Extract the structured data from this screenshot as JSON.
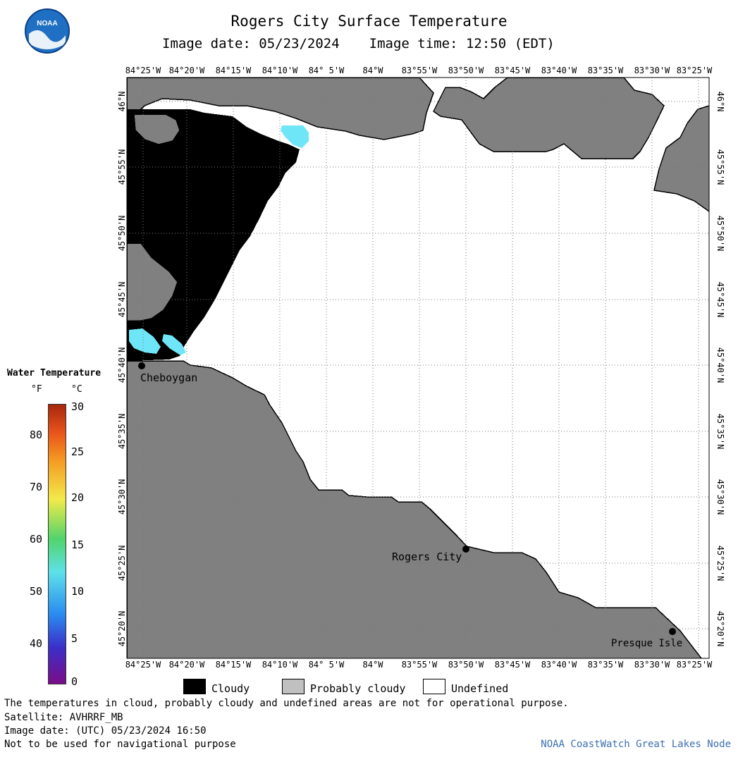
{
  "header": {
    "title": "Rogers City Surface Temperature",
    "image_date_label": "Image date: 05/23/2024",
    "image_time_label": "Image time: 12:50 (EDT)",
    "logo_text": "NOAA"
  },
  "map": {
    "lon_labels": [
      "84°25'W",
      "84°20'W",
      "84°15'W",
      "84°10'W",
      "84° 5'W",
      "84°W",
      "83°55'W",
      "83°50'W",
      "83°45'W",
      "83°40'W",
      "83°35'W",
      "83°30'W",
      "83°25'W"
    ],
    "lat_labels": [
      "46°N",
      "45°55'N",
      "45°50'N",
      "45°45'N",
      "45°40'N",
      "45°35'N",
      "45°30'N",
      "45°25'N",
      "45°20'N"
    ],
    "places": [
      "Cheboygan",
      "Rogers City",
      "Presque Isle"
    ],
    "colors": {
      "land": "#808080",
      "cloudy": "#000000",
      "probably_cloudy": "#c0c0c0",
      "undefined": "#ffffff",
      "water_cells": "#6fe6f8",
      "grid": "#777777"
    }
  },
  "color_legend": {
    "title": "Water Temperature",
    "unit_f": "°F",
    "unit_c": "°C",
    "f_ticks": [
      "80",
      "70",
      "60",
      "50",
      "40"
    ],
    "c_ticks": [
      "30",
      "25",
      "20",
      "15",
      "10",
      "5",
      "0"
    ],
    "color_stops": [
      "#7a0c88",
      "#3b2fc8",
      "#2a8cf0",
      "#5ee0ea",
      "#52d46a",
      "#f2ea4a",
      "#f59a22",
      "#e8531b",
      "#a6270c"
    ]
  },
  "key": {
    "items": [
      {
        "label": "Cloudy",
        "color": "#000000"
      },
      {
        "label": "Probably cloudy",
        "color": "#c0c0c0"
      },
      {
        "label": "Undefined",
        "color": "#ffffff"
      }
    ]
  },
  "notes": {
    "disclaimer": "The temperatures in cloud, probably cloudy and undefined areas are not for operational purpose.",
    "satellite": "Satellite: AVHRRF_MB",
    "utc_date": "Image date: (UTC) 05/23/2024  16:50",
    "navigation": "Not to be used for navigational purpose",
    "credit": "NOAA CoastWatch Great Lakes Node"
  }
}
